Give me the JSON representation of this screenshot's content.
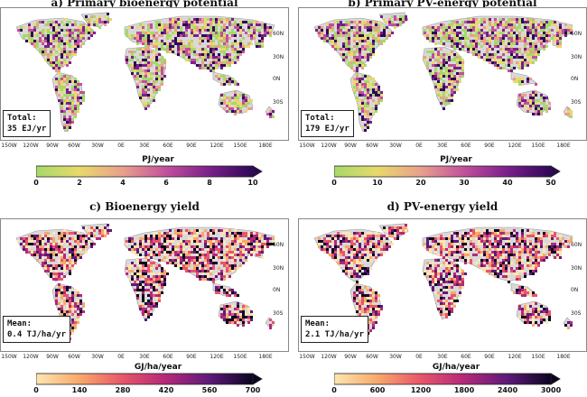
{
  "panels": [
    {
      "id": "a",
      "title": "a)   Primary bioenergy potential",
      "stat_label": "Total:",
      "stat_value": "35 EJ/yr",
      "unit": "PJ/year",
      "ticks": [
        "0",
        "2",
        "4",
        "6",
        "8",
        "10"
      ],
      "palette": [
        "#a6d96a",
        "#e8d96a",
        "#e8a08c",
        "#c2509c",
        "#7a1f8a",
        "#2e0857"
      ]
    },
    {
      "id": "b",
      "title": "b)   Primary PV-energy potential",
      "stat_label": "Total:",
      "stat_value": "179 EJ/yr",
      "unit": "PJ/year",
      "ticks": [
        "0",
        "10",
        "20",
        "30",
        "40",
        "50"
      ],
      "palette": [
        "#a6d96a",
        "#e8d96a",
        "#e8a08c",
        "#c2509c",
        "#7a1f8a",
        "#2e0857"
      ]
    },
    {
      "id": "c",
      "title": "c)   Bioenergy yield",
      "stat_label": "Mean:",
      "stat_value": "0.4 TJ/ha/yr",
      "unit": "GJ/ha/year",
      "ticks": [
        "0",
        "140",
        "280",
        "420",
        "560",
        "700"
      ],
      "palette": [
        "#fce7b2",
        "#f8a86a",
        "#e8556a",
        "#b5287a",
        "#5e1a7a",
        "#0b0420"
      ]
    },
    {
      "id": "d",
      "title": "d)   PV-energy yield",
      "stat_label": "Mean:",
      "stat_value": "2.1 TJ/ha/yr",
      "unit": "GJ/ha/year",
      "ticks": [
        "0",
        "600",
        "1200",
        "1800",
        "2400",
        "3000"
      ],
      "palette": [
        "#fce7b2",
        "#f8a86a",
        "#e8556a",
        "#b5287a",
        "#5e1a7a",
        "#0b0420"
      ]
    }
  ],
  "lon_labels": [
    "150W",
    "120W",
    "90W",
    "60W",
    "30W",
    "0E",
    "30E",
    "60E",
    "90E",
    "120E",
    "150E",
    "180E"
  ],
  "lat_labels": [
    "60N",
    "30N",
    "0N",
    "30S"
  ]
}
